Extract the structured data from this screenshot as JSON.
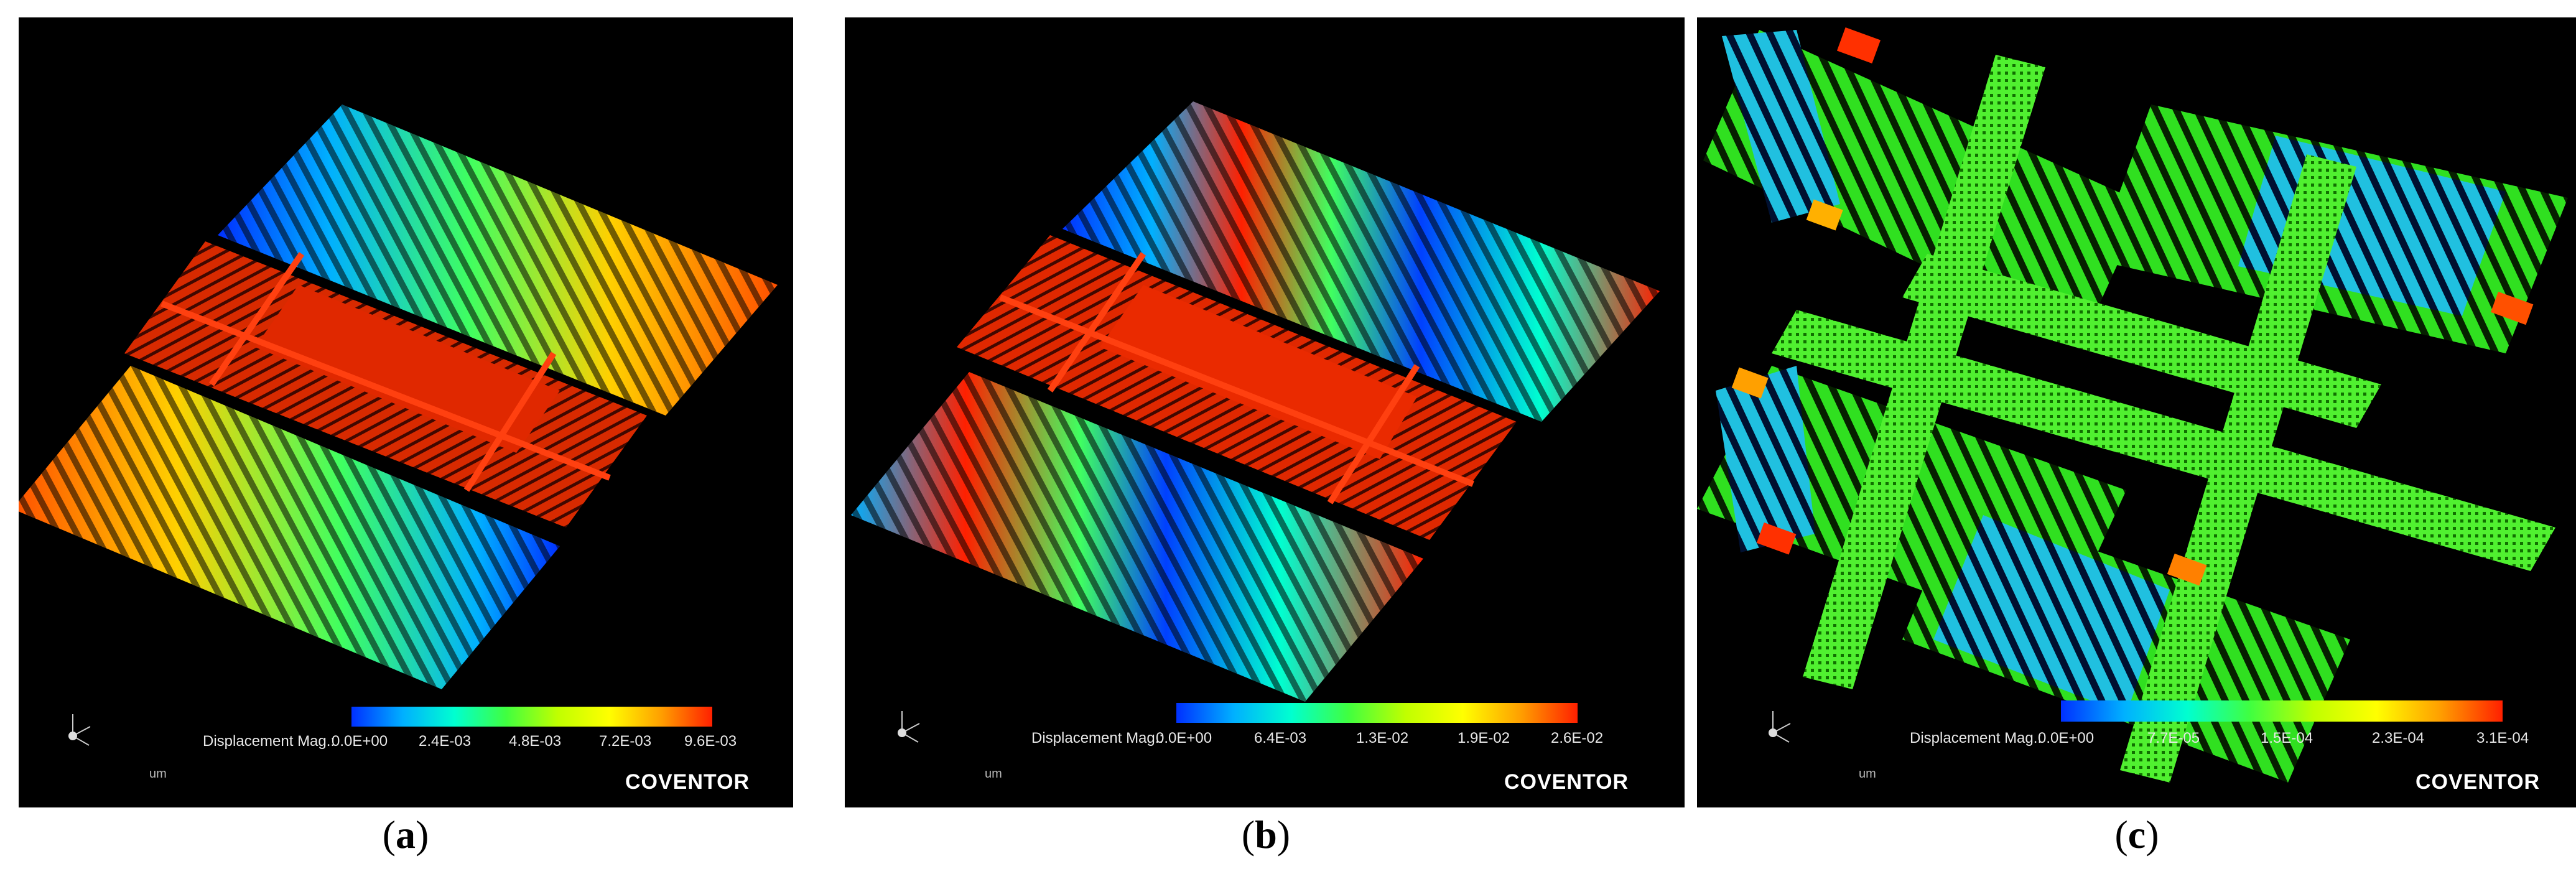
{
  "colors": {
    "background": "#000000",
    "colormap": [
      "#0000ff",
      "#00a0ff",
      "#00ffd0",
      "#00ff40",
      "#a0ff00",
      "#ffff00",
      "#ffa000",
      "#ff2000"
    ]
  },
  "panels": [
    {
      "id": "a",
      "caption_letter": "a",
      "legend_title": "Displacement Mag.:",
      "scale_labels": [
        "0.0E+00",
        "2.4E-03",
        "4.8E-03",
        "7.2E-03",
        "9.6E-03"
      ],
      "unit": "um",
      "brand": "COVENTOR"
    },
    {
      "id": "b",
      "caption_letter": "b",
      "legend_title": "Displacement Mag.:",
      "scale_labels": [
        "0.0E+00",
        "6.4E-03",
        "1.3E-02",
        "1.9E-02",
        "2.6E-02"
      ],
      "unit": "um",
      "brand": "COVENTOR"
    },
    {
      "id": "c",
      "caption_letter": "c",
      "legend_title": "Displacement Mag.:",
      "scale_labels": [
        "0.0E+00",
        "7.7E-05",
        "1.5E-04",
        "2.3E-04",
        "3.1E-04"
      ],
      "unit": "um",
      "brand": "COVENTOR"
    }
  ]
}
